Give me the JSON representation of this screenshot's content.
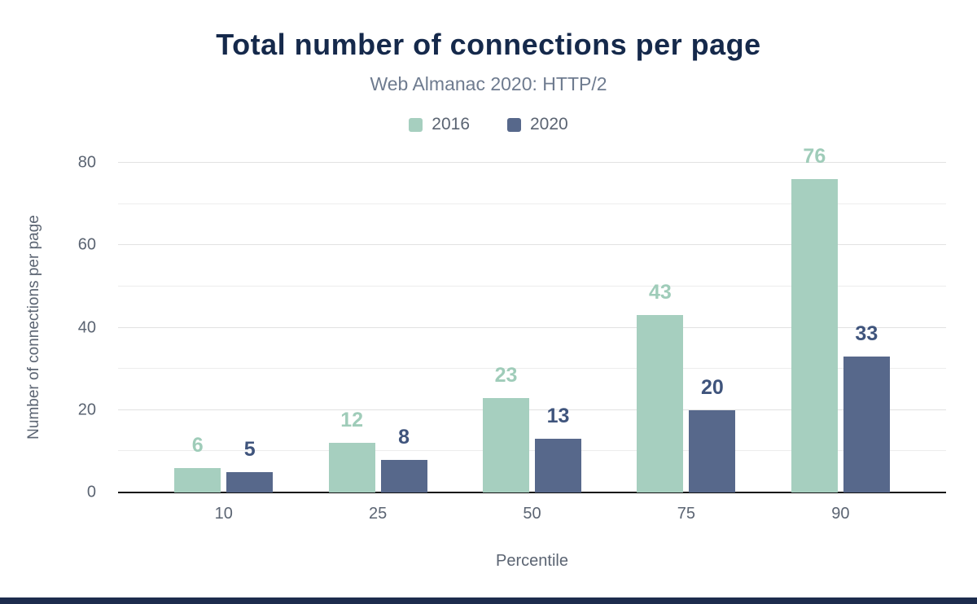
{
  "header": {
    "title": "Total number of connections per page",
    "subtitle": "Web Almanac 2020: HTTP/2"
  },
  "chart_data": {
    "type": "bar",
    "title": "Total number of connections per page",
    "subtitle": "Web Almanac 2020: HTTP/2",
    "xlabel": "Percentile",
    "ylabel": "Number of connections per page",
    "categories": [
      "10",
      "25",
      "50",
      "75",
      "90"
    ],
    "series": [
      {
        "name": "2016",
        "values": [
          6,
          12,
          23,
          43,
          76
        ],
        "color": "#a6cfbf",
        "label_color": "#9fccb9"
      },
      {
        "name": "2020",
        "values": [
          5,
          8,
          13,
          20,
          33
        ],
        "color": "#57688b",
        "label_color": "#3f547c"
      }
    ],
    "ylim": [
      0,
      80
    ],
    "yticks": [
      0,
      20,
      40,
      60,
      80
    ],
    "gridline_step": 10,
    "grid": true,
    "legend_position": "top-center"
  },
  "colors": {
    "title": "#15294b",
    "subtitle": "#6e7b8f",
    "axis_text": "#5b6472",
    "legend_text": "#5b6472",
    "grid_minor": "#ededed",
    "grid_major": "#e2e2e2",
    "baseline": "#111111",
    "background": "#ffffff",
    "footer_strip": "#1d2c4d"
  }
}
